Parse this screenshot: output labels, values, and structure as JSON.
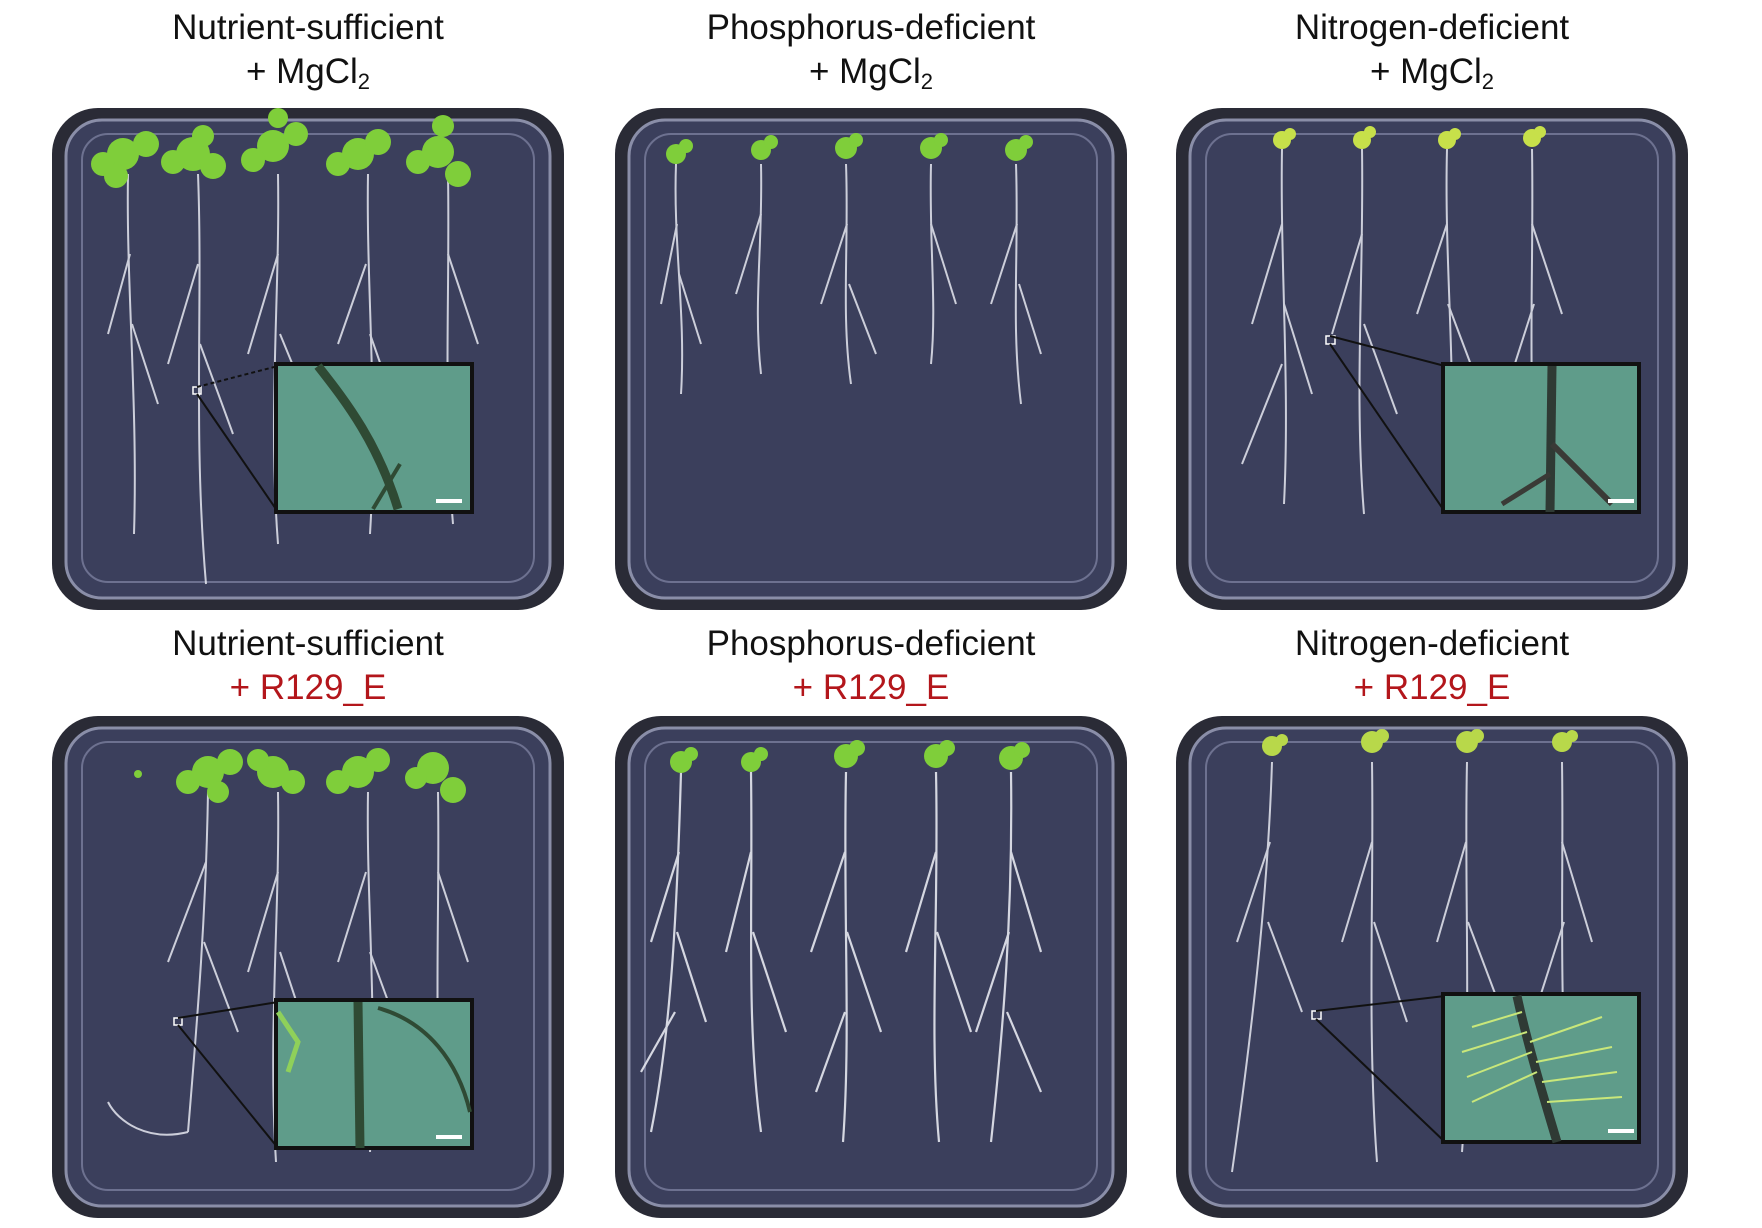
{
  "figure": {
    "panels": [
      {
        "condition": "Nutrient-sufficient",
        "treatment_prefix": "+ MgCl",
        "treatment_sub": "2",
        "treatment_color": "#111111"
      },
      {
        "condition": "Phosphorus-deficient",
        "treatment_prefix": "+ MgCl",
        "treatment_sub": "2",
        "treatment_color": "#111111"
      },
      {
        "condition": "Nitrogen-deficient",
        "treatment_prefix": "+ MgCl",
        "treatment_sub": "2",
        "treatment_color": "#111111"
      },
      {
        "condition": "Nutrient-sufficient",
        "treatment_prefix": "+ R129_E",
        "treatment_sub": "",
        "treatment_color": "#b3161b"
      },
      {
        "condition": "Phosphorus-deficient",
        "treatment_prefix": "+ R129_E",
        "treatment_sub": "",
        "treatment_color": "#b3161b"
      },
      {
        "condition": "Nitrogen-deficient",
        "treatment_prefix": "+ R129_E",
        "treatment_sub": "",
        "treatment_color": "#b3161b"
      }
    ],
    "colors": {
      "plate_fill": "#3b3f5c",
      "plate_rim": "#8a8ea8",
      "plate_frame": "#2a2b36",
      "leaf_green": "#7fce3a",
      "root_white": "#e6e8f0",
      "inset_bg": "#5f9c8a",
      "treatment_red": "#b3161b"
    }
  }
}
